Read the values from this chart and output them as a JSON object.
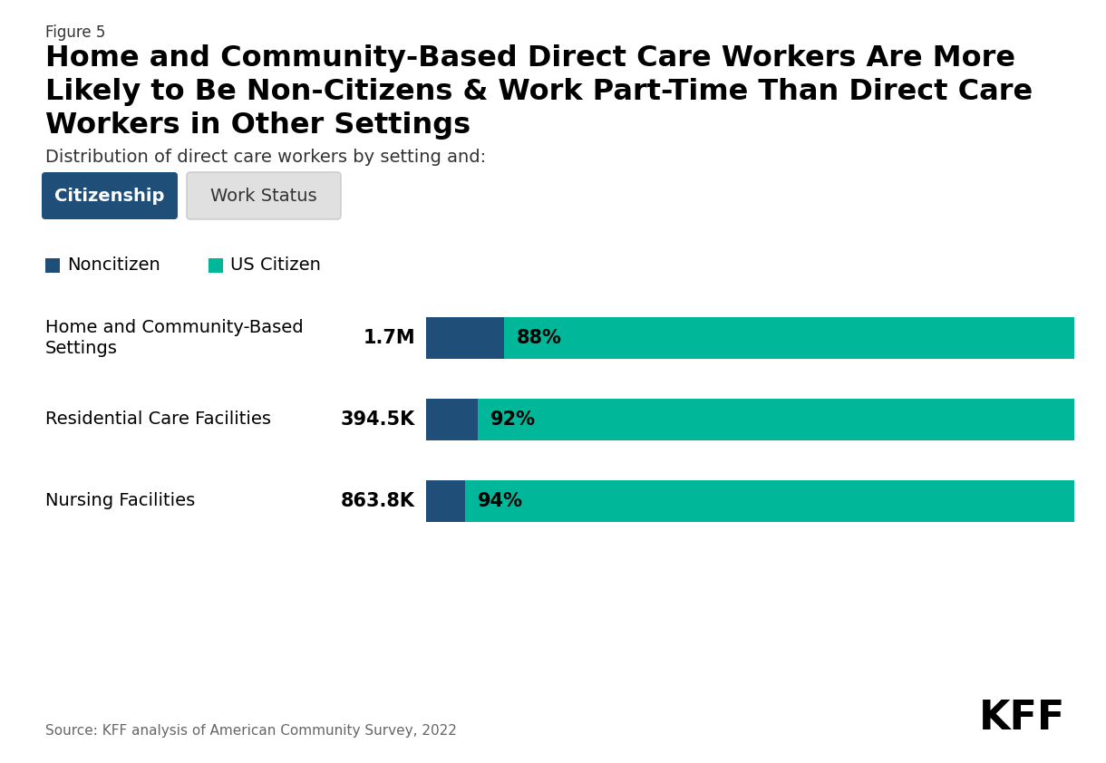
{
  "figure_label": "Figure 5",
  "title": "Home and Community-Based Direct Care Workers Are More\nLikely to Be Non-Citizens & Work Part-Time Than Direct Care\nWorkers in Other Settings",
  "subtitle": "Distribution of direct care workers by setting and:",
  "tab1_label": "Citizenship",
  "tab2_label": "Work Status",
  "legend_items": [
    "Noncitizen",
    "US Citizen"
  ],
  "noncitizen_color": "#1f4e79",
  "uscitizen_color": "#00b899",
  "categories": [
    "Home and Community-Based\nSettings",
    "Residential Care Facilities",
    "Nursing Facilities"
  ],
  "totals": [
    "1.7M",
    "394.5K",
    "863.8K"
  ],
  "noncitizen_pct": [
    12,
    8,
    6
  ],
  "uscitizen_pct": [
    88,
    92,
    94
  ],
  "bar_labels": [
    "88%",
    "92%",
    "94%"
  ],
  "source": "Source: KFF analysis of American Community Survey, 2022",
  "kff_logo": "KFF",
  "background_color": "#ffffff",
  "title_fontsize": 23,
  "subtitle_fontsize": 14,
  "category_fontsize": 14,
  "legend_fontsize": 14,
  "bar_label_fontsize": 15,
  "total_fontsize": 15
}
